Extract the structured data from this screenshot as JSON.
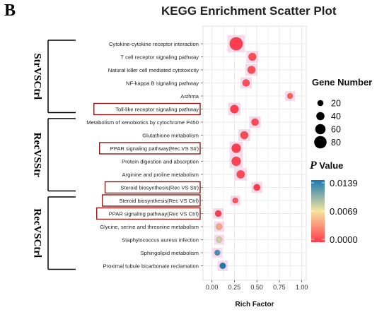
{
  "panel_label": "B",
  "chart_data": {
    "type": "scatter",
    "title": "KEGG Enrichment Scatter Plot",
    "xlabel": "Rich Factor",
    "xlim": [
      -0.1,
      1.05
    ],
    "xticks": [
      "0.00",
      "0.25",
      "0.50",
      "0.75",
      "1.00"
    ],
    "grid": true,
    "groups": [
      {
        "label": "StrVSCtrl",
        "first": 0,
        "last": 5
      },
      {
        "label": "RecVSStr",
        "first": 6,
        "last": 11
      },
      {
        "label": "RecVSCtrl",
        "first": 12,
        "last": 17
      }
    ],
    "pathways": [
      "Cytokine-cytokine receptor interaction",
      "T cell receptor signaling pathway",
      "Natural killer cell mediated cytotoxicity",
      "NF-kappa B signaling pathway",
      "Asthma",
      "Toll-like receptor signaling pathway",
      "Metabolism of xenobiotics by cytochrome P450",
      "Glutathione metabolism",
      "PPAR signaling pathway(Rec VS Str)",
      "Protein digestion and absorption",
      "Arginine and proline metabolism",
      "Steroid biosynthesis(Rec VS Str)",
      "Steroid biosynthesis(Rec VS Ctrl)",
      "PPAR signaling pathway(Rec VS Ctrl)",
      "Glycine, serine and threonine metabolism",
      "Staphylococcus aureus infection",
      "Sphingolipid metabolism",
      "Proximal tubule bicarbonate reclamation"
    ],
    "highlighted": [
      5,
      8,
      11,
      12,
      13
    ],
    "points": [
      {
        "x": 0.27,
        "size": 85,
        "p": 0.0001
      },
      {
        "x": 0.45,
        "size": 35,
        "p": 0.0008
      },
      {
        "x": 0.44,
        "size": 35,
        "p": 0.0008
      },
      {
        "x": 0.38,
        "size": 30,
        "p": 0.0008
      },
      {
        "x": 0.87,
        "size": 15,
        "p": 0.0014
      },
      {
        "x": 0.25,
        "size": 40,
        "p": 0.0001
      },
      {
        "x": 0.48,
        "size": 30,
        "p": 0.0006
      },
      {
        "x": 0.36,
        "size": 35,
        "p": 0.0006
      },
      {
        "x": 0.27,
        "size": 48,
        "p": 0.0001
      },
      {
        "x": 0.27,
        "size": 48,
        "p": 0.0003
      },
      {
        "x": 0.32,
        "size": 38,
        "p": 0.0006
      },
      {
        "x": 0.5,
        "size": 25,
        "p": 0.0001
      },
      {
        "x": 0.26,
        "size": 15,
        "p": 0.001
      },
      {
        "x": 0.07,
        "size": 22,
        "p": 0.0001
      },
      {
        "x": 0.08,
        "size": 20,
        "p": 0.0045
      },
      {
        "x": 0.08,
        "size": 15,
        "p": 0.0082
      },
      {
        "x": 0.06,
        "size": 15,
        "p": 0.0125
      },
      {
        "x": 0.12,
        "size": 20,
        "p": 0.0139
      }
    ],
    "size_legend": {
      "title": "Gene Number",
      "values": [
        "20",
        "40",
        "60",
        "80"
      ]
    },
    "color_legend": {
      "title_italic": "P",
      "title_rest": " Value",
      "labels": [
        "0.0139",
        "0.0069",
        "0.0000"
      ],
      "colors": {
        "low": "#ff3b4b",
        "mid": "#f7e4a0",
        "high": "#1979b1"
      },
      "range": [
        0.0,
        0.0139
      ]
    },
    "colors": {
      "panel_bg": "#ffffff",
      "grid": "#e5e5e5",
      "highlight_box": "#8b1a14",
      "halo": "#f3b8d8",
      "bracket": "#000000"
    }
  }
}
